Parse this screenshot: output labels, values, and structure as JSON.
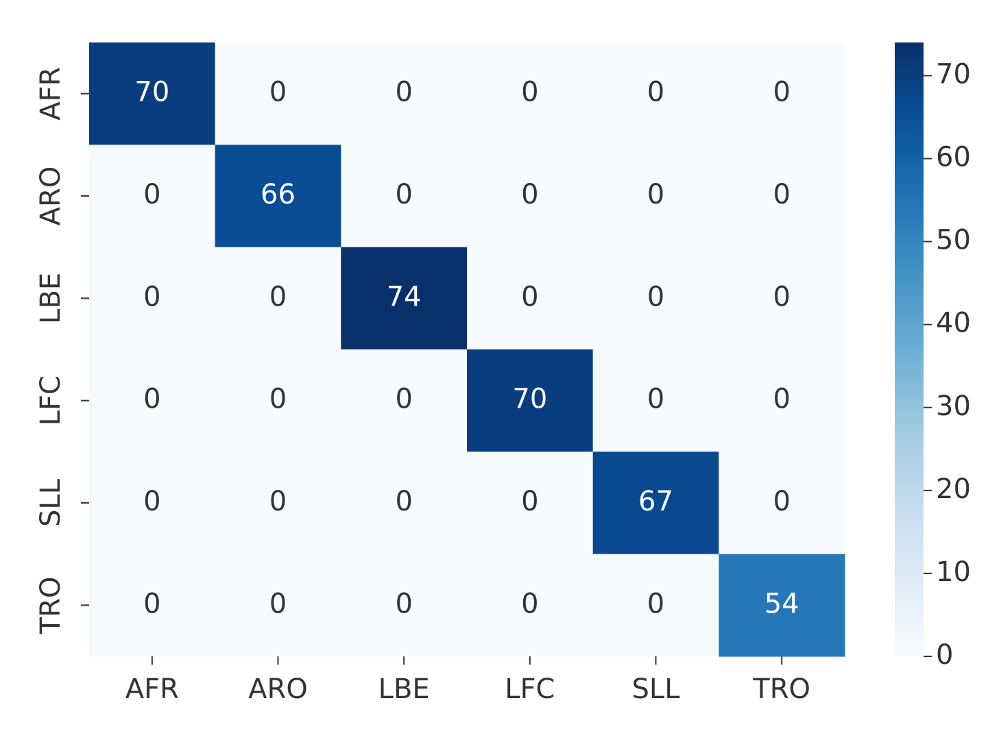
{
  "chart_data": {
    "type": "heatmap",
    "x_categories": [
      "AFR",
      "ARO",
      "LBE",
      "LFC",
      "SLL",
      "TRO"
    ],
    "y_categories": [
      "AFR",
      "ARO",
      "LBE",
      "LFC",
      "SLL",
      "TRO"
    ],
    "z": [
      [
        70,
        0,
        0,
        0,
        0,
        0
      ],
      [
        0,
        66,
        0,
        0,
        0,
        0
      ],
      [
        0,
        0,
        74,
        0,
        0,
        0
      ],
      [
        0,
        0,
        0,
        70,
        0,
        0
      ],
      [
        0,
        0,
        0,
        0,
        67,
        0
      ],
      [
        0,
        0,
        0,
        0,
        0,
        54
      ]
    ],
    "colormap": "Blues",
    "clim": [
      0,
      74
    ],
    "cticks": [
      0,
      10,
      20,
      30,
      40,
      50,
      60,
      70
    ]
  }
}
